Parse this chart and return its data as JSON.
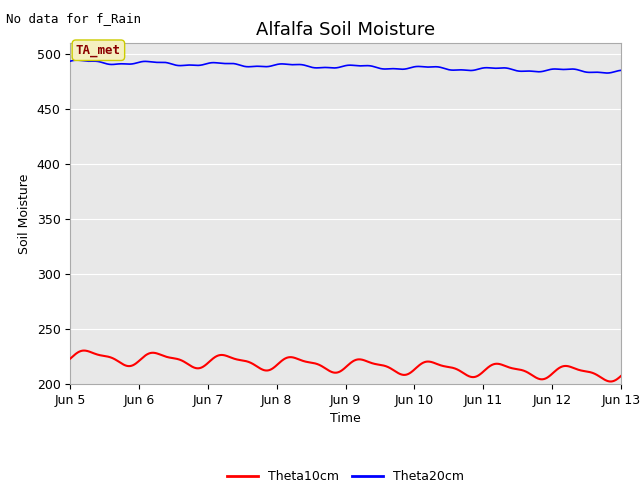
{
  "title": "Alfalfa Soil Moisture",
  "ylabel": "Soil Moisture",
  "xlabel": "Time",
  "no_data_label": "No data for f_Rain",
  "ta_met_label": "TA_met",
  "ylim": [
    200,
    510
  ],
  "yticks": [
    200,
    250,
    300,
    350,
    400,
    450,
    500
  ],
  "x_tick_labels": [
    "Jun 5",
    "Jun 6",
    "Jun 7",
    "Jun 8",
    "Jun 9",
    "Jun 10",
    "Jun 11",
    "Jun 12",
    "Jun 13"
  ],
  "theta10_color": "#ff0000",
  "theta20_color": "#0000ff",
  "bg_color": "#e8e8e8",
  "legend_theta10": "Theta10cm",
  "legend_theta20": "Theta20cm",
  "title_fontsize": 13,
  "label_fontsize": 9,
  "tick_fontsize": 9,
  "no_data_fontsize": 9,
  "ta_met_fontsize": 9
}
